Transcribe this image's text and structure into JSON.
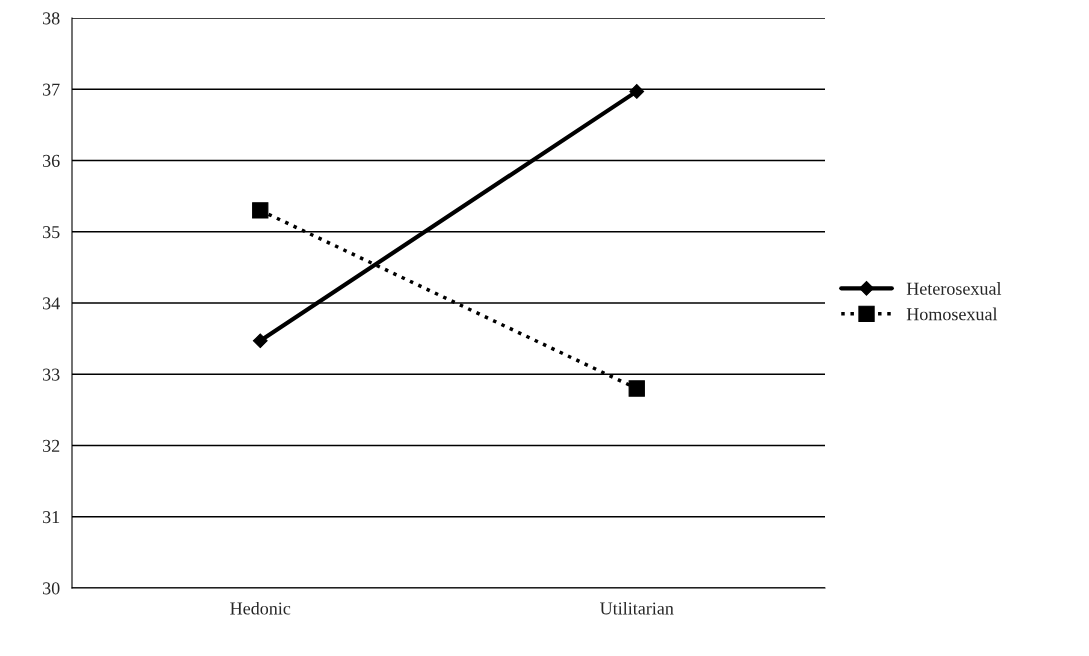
{
  "chart_data": {
    "type": "line",
    "categories": [
      "Hedonic",
      "Utilitarian"
    ],
    "series": [
      {
        "name": "Heterosexual",
        "color": "#000000",
        "values": [
          33.47,
          36.97
        ],
        "marker": "diamond",
        "line_style": "solid"
      },
      {
        "name": "Homosexual",
        "color": "#000000",
        "values": [
          35.3,
          32.8
        ],
        "marker": "square",
        "line_style": "dotted"
      }
    ],
    "ylim": [
      30,
      38
    ],
    "yticks": [
      30,
      31,
      32,
      33,
      34,
      35,
      36,
      37,
      38
    ],
    "grid": "y",
    "legend": "right"
  }
}
